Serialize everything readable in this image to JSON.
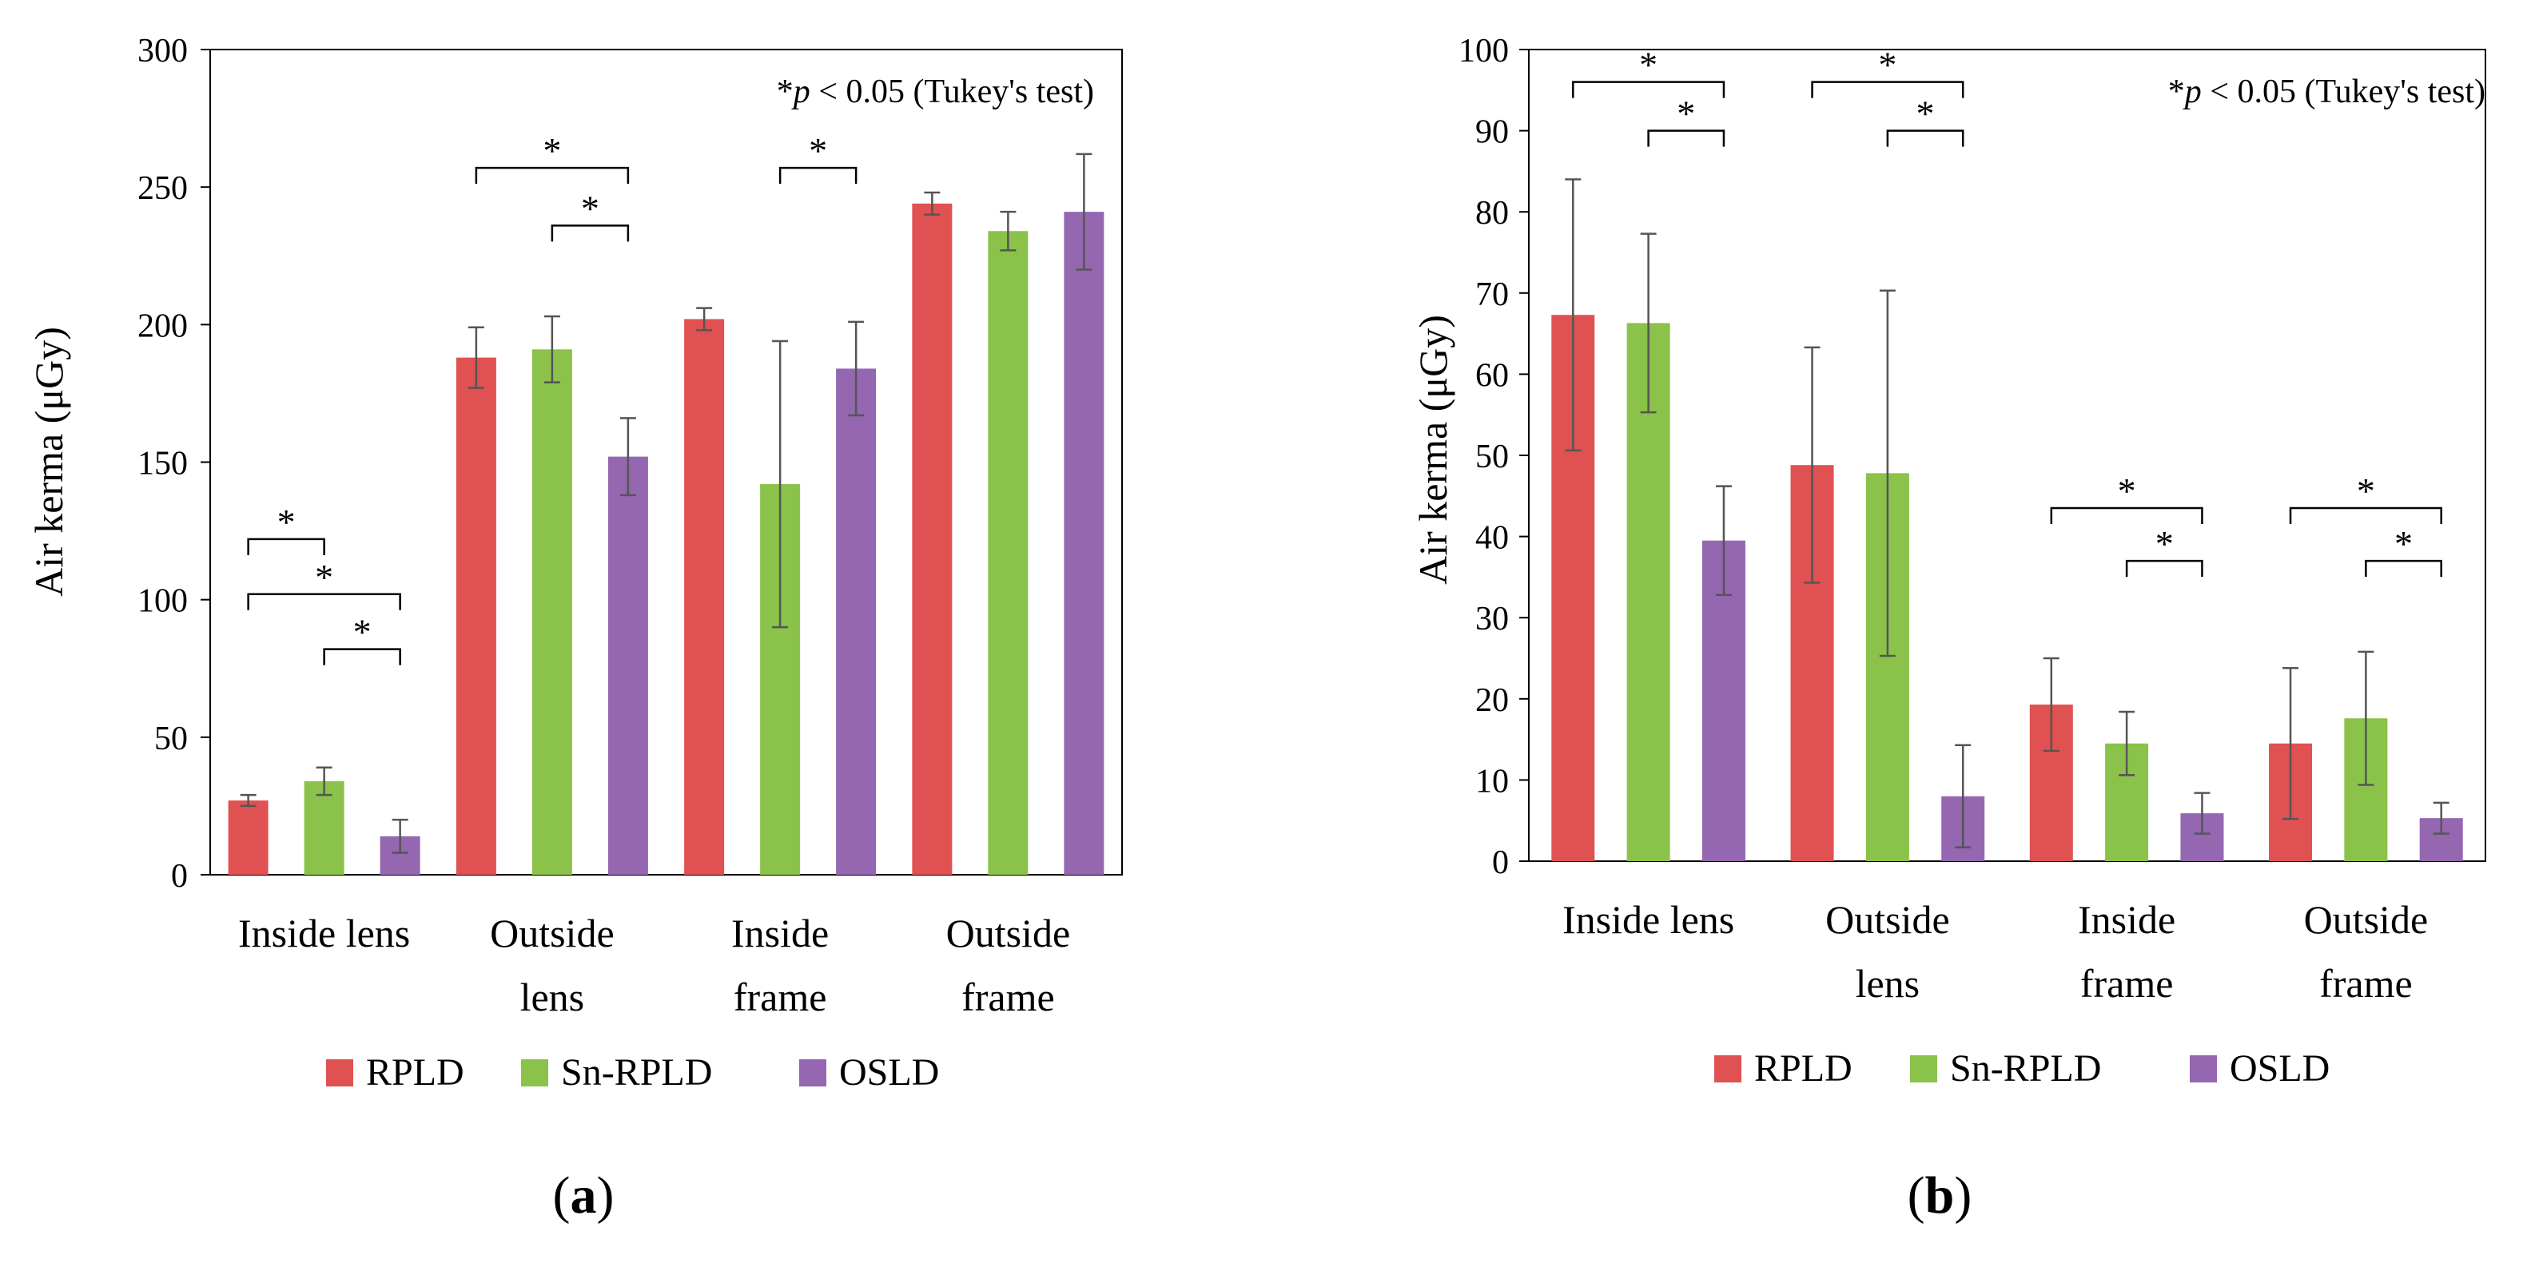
{
  "chart_data": [
    {
      "panel": "a",
      "type": "bar",
      "panel_label_prefix": "(",
      "panel_label_letter": "a",
      "panel_label_suffix": ")",
      "ylabel": "Air kerma (μGy)",
      "note_prefix": "*",
      "note_p": "p",
      "note_rest": " < 0.05 (Tukey's test)",
      "ylim": [
        0,
        300
      ],
      "yticks": [
        0,
        50,
        100,
        150,
        200,
        250,
        300
      ],
      "categories": [
        [
          "Inside lens"
        ],
        [
          "Outside",
          "lens"
        ],
        [
          "Inside",
          "frame"
        ],
        [
          "Outside",
          "frame"
        ]
      ],
      "series": [
        {
          "name": "RPLD",
          "color": "#e05151",
          "values": [
            27,
            188,
            202,
            244
          ],
          "errors": [
            2,
            11,
            4,
            4
          ]
        },
        {
          "name": "Sn-RPLD",
          "color": "#8ac24a",
          "values": [
            34,
            191,
            142,
            234
          ],
          "errors": [
            5,
            12,
            52,
            7
          ]
        },
        {
          "name": "OSLD",
          "color": "#9467b0",
          "values": [
            14,
            152,
            184,
            241
          ],
          "errors": [
            6,
            14,
            17,
            21
          ]
        }
      ],
      "significance": [
        {
          "category": 0,
          "from": 0,
          "to": 1,
          "label": "*",
          "y": 122
        },
        {
          "category": 0,
          "from": 0,
          "to": 2,
          "label": "*",
          "y": 102
        },
        {
          "category": 0,
          "from": 1,
          "to": 2,
          "label": "*",
          "y": 82
        },
        {
          "category": 1,
          "from": 0,
          "to": 2,
          "label": "*",
          "y": 257
        },
        {
          "category": 1,
          "from": 1,
          "to": 2,
          "label": "*",
          "y": 236
        },
        {
          "category": 2,
          "from": 1,
          "to": 2,
          "label": "*",
          "y": 257
        }
      ]
    },
    {
      "panel": "b",
      "type": "bar",
      "panel_label_prefix": "(",
      "panel_label_letter": "b",
      "panel_label_suffix": ")",
      "ylabel": "Air kerma (μGy)",
      "note_prefix": "*",
      "note_p": "p",
      "note_rest": " < 0.05 (Tukey's test)",
      "ylim": [
        0,
        100
      ],
      "yticks": [
        0,
        10,
        20,
        30,
        40,
        50,
        60,
        70,
        80,
        90,
        100
      ],
      "categories": [
        [
          "Inside lens"
        ],
        [
          "Outside",
          "lens"
        ],
        [
          "Inside",
          "frame"
        ],
        [
          "Outside",
          "frame"
        ]
      ],
      "series": [
        {
          "name": "RPLD",
          "color": "#e05151",
          "values": [
            67.3,
            48.8,
            19.3,
            14.5
          ],
          "errors": [
            16.7,
            14.5,
            5.7,
            9.3
          ]
        },
        {
          "name": "Sn-RPLD",
          "color": "#8ac24a",
          "values": [
            66.3,
            47.8,
            14.5,
            17.6
          ],
          "errors": [
            11,
            22.5,
            3.9,
            8.2
          ]
        },
        {
          "name": "OSLD",
          "color": "#9467b0",
          "values": [
            39.5,
            8,
            5.9,
            5.3
          ],
          "errors": [
            6.7,
            6.3,
            2.5,
            1.9
          ]
        }
      ],
      "significance": [
        {
          "category": 0,
          "from": 0,
          "to": 2,
          "label": "*",
          "y": 96
        },
        {
          "category": 0,
          "from": 1,
          "to": 2,
          "label": "*",
          "y": 90
        },
        {
          "category": 1,
          "from": 0,
          "to": 2,
          "label": "*",
          "y": 96
        },
        {
          "category": 1,
          "from": 1,
          "to": 2,
          "label": "*",
          "y": 90
        },
        {
          "category": 2,
          "from": 0,
          "to": 2,
          "label": "*",
          "y": 43.5
        },
        {
          "category": 2,
          "from": 1,
          "to": 2,
          "label": "*",
          "y": 37
        },
        {
          "category": 3,
          "from": 0,
          "to": 2,
          "label": "*",
          "y": 43.5
        },
        {
          "category": 3,
          "from": 1,
          "to": 2,
          "label": "*",
          "y": 37
        }
      ]
    }
  ]
}
